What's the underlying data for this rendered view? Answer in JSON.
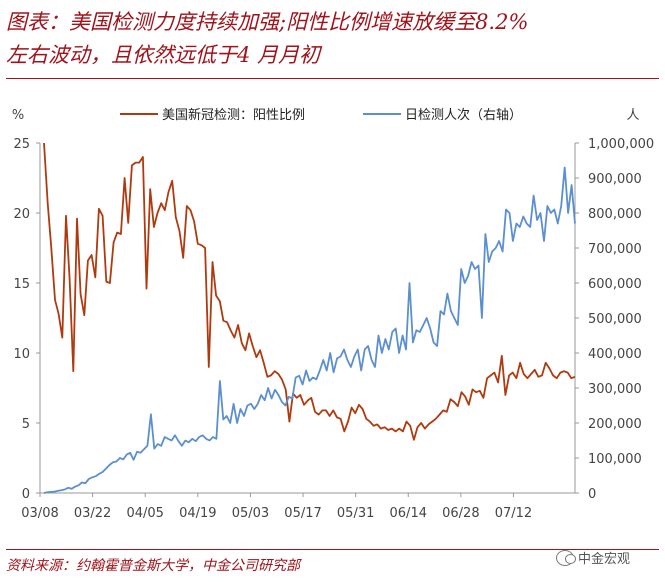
{
  "header": {
    "title_line1": "图表：美国检测力度持续加强;阳性比例增速放缓至8.2%",
    "title_line2": "左右波动，且依然远低于4 月月初"
  },
  "footer": {
    "source": "资料来源：约翰霍普金斯大学，中金公司研究部",
    "watermark": "中金宏观"
  },
  "colors": {
    "accent": "#a0131a",
    "positive_rate": "#b03a0f",
    "daily_tests": "#5b8fd0"
  },
  "chart_data": {
    "type": "line",
    "x_tick_labels": [
      "03/08",
      "03/22",
      "04/05",
      "04/19",
      "05/03",
      "05/17",
      "05/31",
      "06/14",
      "06/28",
      "07/12"
    ],
    "left_axis": {
      "unit": "%",
      "ticks": [
        "0",
        "5",
        "10",
        "15",
        "20",
        "25"
      ],
      "range": [
        0,
        25
      ]
    },
    "right_axis": {
      "unit": "人",
      "ticks": [
        "0",
        "100,000",
        "200,000",
        "300,000",
        "400,000",
        "500,000",
        "600,000",
        "700,000",
        "800,000",
        "900,000",
        "1,000,000"
      ],
      "range": [
        0,
        1000000
      ]
    },
    "legend_position": "top",
    "grid": false,
    "series": [
      {
        "name": "美国新冠检测：阳性比例",
        "axis": "left",
        "values": [
          25,
          20.7,
          17.5,
          13.8,
          12.8,
          11.1,
          19.8,
          15.3,
          8.7,
          19.6,
          14.2,
          12.7,
          16.6,
          17,
          15.4,
          20.3,
          19.8,
          15.1,
          15,
          17.9,
          18.6,
          18.5,
          22.5,
          19.3,
          23.4,
          23.6,
          23.6,
          24,
          14.6,
          21.7,
          19,
          20,
          20.7,
          20.2,
          21.5,
          22.3,
          19.7,
          18.7,
          16.8,
          20.5,
          20.2,
          19.4,
          17.8,
          17.7,
          17.5,
          9,
          16.5,
          14.1,
          13.7,
          12.3,
          12.2,
          11.6,
          11.1,
          12,
          10.7,
          10.2,
          11.4,
          10.5,
          9.7,
          10.2,
          9.3,
          8.3,
          8.4,
          8.7,
          8.5,
          8.1,
          7.4,
          5.1,
          7.1,
          6.8,
          7,
          6.3,
          6.6,
          6.8,
          5.8,
          5.6,
          5.9,
          5.9,
          5.5,
          5.9,
          5.4,
          5.3,
          4.4,
          5.1,
          6.1,
          5.7,
          6.3,
          6,
          5.3,
          5.1,
          4.8,
          4.9,
          4.6,
          4.7,
          4.5,
          4.6,
          4.4,
          4.6,
          4.4,
          5.1,
          4.8,
          3.8,
          4.7,
          5,
          4.6,
          4.9,
          5.1,
          5.3,
          5.6,
          5.9,
          5.8,
          6.7,
          6.5,
          6.2,
          7.2,
          6.9,
          6.3,
          7.4,
          7.2,
          7.3,
          6.8,
          8.2,
          8.4,
          8.6,
          7.9,
          9.8,
          7,
          8.4,
          8.6,
          8.2,
          9.3,
          8.5,
          8.2,
          8.5,
          8.8,
          8.3,
          8.4,
          9.3,
          8.9,
          8.4,
          8.2,
          8.6,
          8.7,
          8.6,
          8.2,
          8.3
        ]
      },
      {
        "name": "日检测人次（右轴）",
        "axis": "right",
        "values": [
          0,
          2000,
          3000,
          4000,
          6000,
          8000,
          10000,
          15000,
          12000,
          18000,
          22000,
          30000,
          28000,
          40000,
          45000,
          48000,
          55000,
          60000,
          70000,
          80000,
          88000,
          90000,
          100000,
          96000,
          110000,
          115000,
          95000,
          118000,
          115000,
          125000,
          135000,
          225000,
          127000,
          140000,
          135000,
          160000,
          155000,
          150000,
          165000,
          148000,
          135000,
          150000,
          145000,
          155000,
          148000,
          160000,
          165000,
          155000,
          150000,
          160000,
          155000,
          320000,
          210000,
          220000,
          200000,
          255000,
          200000,
          240000,
          220000,
          250000,
          255000,
          240000,
          255000,
          280000,
          265000,
          300000,
          270000,
          295000,
          280000,
          260000,
          250000,
          275000,
          270000,
          330000,
          335000,
          310000,
          350000,
          320000,
          330000,
          325000,
          350000,
          380000,
          350000,
          400000,
          345000,
          385000,
          390000,
          410000,
          380000,
          360000,
          390000,
          410000,
          350000,
          410000,
          420000,
          380000,
          360000,
          450000,
          400000,
          440000,
          410000,
          460000,
          470000,
          400000,
          450000,
          410000,
          600000,
          430000,
          465000,
          460000,
          480000,
          500000,
          470000,
          430000,
          420000,
          520000,
          510000,
          570000,
          520000,
          500000,
          480000,
          640000,
          600000,
          620000,
          660000,
          640000,
          650000,
          500000,
          740000,
          660000,
          690000,
          700000,
          720000,
          690000,
          810000,
          800000,
          720000,
          770000,
          760000,
          790000,
          770000,
          760000,
          850000,
          780000,
          800000,
          720000,
          820000,
          800000,
          810000,
          770000,
          820000,
          930000,
          800000,
          880000,
          770000
        ]
      }
    ]
  }
}
